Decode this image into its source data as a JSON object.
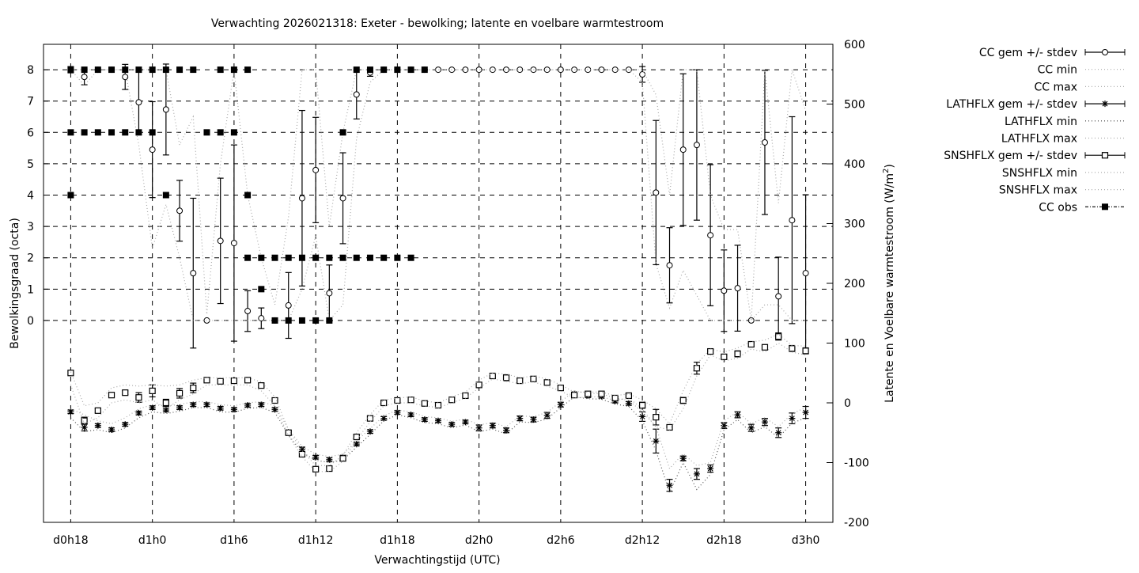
{
  "chart_data": {
    "type": "line",
    "title": "Verwachting 2026021318: Exeter - bewolking; latente en voelbare warmtestroom",
    "xlabel": "Verwachtingstijd (UTC)",
    "ylabel": "Bewolkingsgraad (octa)",
    "y2label": "Latente en Voelbare warmtestroom (W/m",
    "y2label_sup": "2",
    "y2label_end": ")",
    "ylim": [
      -6.44,
      8.81
    ],
    "y2lim": [
      -200,
      600
    ],
    "yticks": [
      0,
      1,
      2,
      3,
      4,
      5,
      6,
      7,
      8
    ],
    "y2ticks": [
      -200,
      -100,
      0,
      100,
      200,
      300,
      400,
      500,
      600
    ],
    "xticks": [
      "d0h18",
      "d1h0",
      "d1h6",
      "d1h12",
      "d1h18",
      "d2h0",
      "d2h6",
      "d2h12",
      "d2h18",
      "d3h0"
    ],
    "grid": true,
    "legend_placement": "outside-right",
    "x": [
      "d0h18",
      "d0h19",
      "d0h20",
      "d0h21",
      "d0h22",
      "d0h23",
      "d1h0",
      "d1h1",
      "d1h2",
      "d1h3",
      "d1h4",
      "d1h5",
      "d1h6",
      "d1h7",
      "d1h8",
      "d1h9",
      "d1h10",
      "d1h11",
      "d1h12",
      "d1h13",
      "d1h14",
      "d1h15",
      "d1h16",
      "d1h17",
      "d1h18",
      "d1h19",
      "d1h20",
      "d1h21",
      "d1h22",
      "d1h23",
      "d2h0",
      "d2h1",
      "d2h2",
      "d2h3",
      "d2h4",
      "d2h5",
      "d2h6",
      "d2h7",
      "d2h8",
      "d2h9",
      "d2h10",
      "d2h11",
      "d2h12",
      "d2h13",
      "d2h14",
      "d2h15",
      "d2h16",
      "d2h17",
      "d2h18",
      "d2h19",
      "d2h20",
      "d2h21",
      "d2h22",
      "d2h23",
      "d3h0"
    ],
    "series": [
      {
        "name": "CC gem +/- stdev",
        "axis": "y",
        "style": "errorbar-circle",
        "values": [
          8,
          7.77,
          8,
          8,
          7.77,
          6.96,
          5.45,
          6.73,
          3.5,
          1.51,
          0,
          2.54,
          2.47,
          0.3,
          0.07,
          0,
          0.48,
          3.9,
          4.8,
          0.87,
          3.9,
          7.21,
          7.91,
          8,
          8,
          8,
          8,
          8,
          8,
          8,
          8,
          8,
          8,
          8,
          8,
          8,
          8,
          8,
          8,
          8,
          8,
          8,
          7.85,
          4.08,
          1.76,
          5.45,
          5.6,
          2.72,
          0.95,
          1.03,
          0,
          5.68,
          0.77,
          3.2,
          1.51
        ],
        "stdev": [
          0.1,
          0.25,
          0,
          0,
          0.4,
          1.0,
          1.53,
          1.45,
          0.97,
          2.39,
          0,
          2.0,
          3.13,
          0.65,
          0.33,
          0,
          1.05,
          2.8,
          1.68,
          0.9,
          1.45,
          0.78,
          0.12,
          0,
          0,
          0,
          0,
          0,
          0,
          0,
          0,
          0,
          0,
          0,
          0,
          0,
          0,
          0,
          0,
          0,
          0,
          0,
          0.25,
          2.3,
          1.2,
          2.42,
          2.4,
          2.25,
          1.3,
          1.37,
          0,
          2.3,
          1.25,
          3.3,
          2.5
        ]
      },
      {
        "name": "CC min",
        "axis": "y",
        "style": "dotted-grey",
        "values": [
          8,
          7.5,
          8,
          8,
          8,
          5.6,
          2.3,
          3.7,
          2.0,
          0,
          0,
          0,
          0,
          0,
          0,
          0,
          0,
          1.0,
          2.7,
          0,
          0.5,
          5.8,
          7.6,
          8,
          8,
          8,
          8,
          8,
          8,
          8,
          8,
          8,
          8,
          8,
          8,
          8,
          8,
          8,
          8,
          8,
          8,
          8,
          7.6,
          1.8,
          0.4,
          1.6,
          0.8,
          0,
          0,
          0,
          0,
          0.5,
          0.5,
          0,
          0
        ]
      },
      {
        "name": "CC max",
        "axis": "y",
        "style": "dotted-grey",
        "values": [
          8,
          8,
          8,
          8,
          8,
          8,
          8,
          8,
          5.6,
          6.5,
          0.2,
          5.0,
          8,
          4.0,
          2.0,
          0.5,
          3.3,
          8,
          8,
          3.0,
          6.0,
          8,
          8,
          8,
          8,
          8,
          8,
          8,
          8,
          8,
          8,
          8,
          8,
          8,
          8,
          8,
          8,
          8,
          8,
          8,
          8,
          8,
          8,
          7.2,
          4.0,
          8,
          8,
          4.0,
          2.9,
          2.9,
          0,
          8,
          3.75,
          8,
          6.7
        ]
      },
      {
        "name": "LATHFLX gem +/- stdev",
        "axis": "y2",
        "style": "errorbar-asterisk",
        "values": [
          -15,
          -41,
          -38,
          -45,
          -36,
          -17,
          -8,
          -12,
          -8,
          -3,
          -3,
          -9,
          -11,
          -4,
          -3,
          -11,
          -49,
          -78,
          -91,
          -95,
          -91,
          -69,
          -48,
          -26,
          -16,
          -20,
          -28,
          -30,
          -36,
          -32,
          -42,
          -38,
          -46,
          -26,
          -28,
          -21,
          -3,
          15,
          12,
          11,
          3,
          -1,
          -23,
          -64,
          -138,
          -93,
          -119,
          -110,
          -38,
          -20,
          -42,
          -32,
          -50,
          -26,
          -16
        ],
        "stdev": [
          3,
          6,
          3,
          3,
          3,
          3,
          3,
          3,
          3,
          3,
          3,
          3,
          3,
          3,
          3,
          3,
          3,
          4,
          3,
          3,
          3,
          3,
          3,
          3,
          3,
          3,
          3,
          3,
          3,
          3,
          5,
          4,
          4,
          4,
          4,
          5,
          4,
          3,
          3,
          3,
          3,
          3,
          8,
          20,
          10,
          4,
          9,
          6,
          5,
          5,
          6,
          6,
          8,
          9,
          10
        ]
      },
      {
        "name": "LATHFLX min",
        "axis": "y2",
        "style": "dotted-black",
        "values": [
          -25,
          -48,
          -45,
          -50,
          -42,
          -25,
          -15,
          -18,
          -14,
          -8,
          -8,
          -15,
          -16,
          -9,
          -8,
          -16,
          -54,
          -83,
          -96,
          -100,
          -96,
          -74,
          -53,
          -30,
          -20,
          -25,
          -33,
          -35,
          -42,
          -37,
          -48,
          -44,
          -52,
          -32,
          -33,
          -27,
          -8,
          10,
          7,
          6,
          -2,
          -6,
          -30,
          -80,
          -150,
          -100,
          -145,
          -120,
          -45,
          -28,
          -50,
          -40,
          -58,
          -34,
          -25
        ]
      },
      {
        "name": "LATHFLX max",
        "axis": "y2",
        "style": "dotted-grey",
        "values": [
          -10,
          -20,
          -30,
          -35,
          -25,
          -10,
          -3,
          -5,
          -3,
          2,
          2,
          -3,
          -5,
          0,
          2,
          -5,
          -44,
          -73,
          -86,
          -90,
          -86,
          -64,
          -43,
          -22,
          -12,
          -15,
          -23,
          -25,
          -31,
          -27,
          -37,
          -33,
          -40,
          -22,
          -23,
          -16,
          2,
          20,
          16,
          15,
          8,
          4,
          -15,
          -40,
          -110,
          -85,
          -105,
          -100,
          -30,
          -15,
          -35,
          -25,
          -40,
          -18,
          -8
        ]
      },
      {
        "name": "SNSHFLX gem +/- stdev",
        "axis": "y2",
        "style": "errorbar-square",
        "values": [
          50,
          -30,
          -13,
          13,
          17,
          9,
          20,
          0,
          16,
          25,
          38,
          36,
          37,
          38,
          29,
          4,
          -50,
          -86,
          -111,
          -110,
          -93,
          -57,
          -26,
          0,
          4,
          5,
          -1,
          -4,
          5,
          12,
          30,
          45,
          42,
          37,
          40,
          34,
          25,
          13,
          15,
          15,
          8,
          12,
          -4,
          -24,
          -41,
          4,
          58,
          86,
          77,
          82,
          98,
          93,
          111,
          91,
          87
        ],
        "stdev": [
          3,
          6,
          3,
          3,
          3,
          8,
          10,
          6,
          8,
          8,
          3,
          3,
          3,
          3,
          3,
          3,
          3,
          3,
          3,
          3,
          3,
          3,
          3,
          3,
          3,
          3,
          3,
          3,
          3,
          3,
          3,
          4,
          5,
          3,
          3,
          3,
          4,
          3,
          3,
          3,
          3,
          3,
          5,
          13,
          4,
          5,
          10,
          4,
          3,
          5,
          3,
          3,
          6,
          5,
          5
        ]
      },
      {
        "name": "SNSHFLX min",
        "axis": "y2",
        "style": "dotted-grey",
        "values": [
          30,
          -35,
          -25,
          0,
          5,
          0,
          5,
          -10,
          5,
          15,
          30,
          30,
          30,
          30,
          20,
          -5,
          -55,
          -90,
          -115,
          -115,
          -98,
          -62,
          -32,
          -5,
          0,
          0,
          -5,
          -8,
          0,
          8,
          25,
          40,
          36,
          32,
          35,
          28,
          20,
          8,
          10,
          10,
          4,
          8,
          -10,
          -40,
          -45,
          -10,
          45,
          80,
          70,
          75,
          90,
          85,
          100,
          85,
          80
        ]
      },
      {
        "name": "SNSHFLX max",
        "axis": "y2",
        "style": "dotted-grey",
        "values": [
          52,
          -5,
          0,
          25,
          30,
          28,
          30,
          28,
          30,
          38,
          42,
          42,
          42,
          42,
          35,
          10,
          -45,
          -80,
          -105,
          -105,
          -88,
          -50,
          -20,
          5,
          8,
          10,
          3,
          0,
          10,
          18,
          38,
          50,
          48,
          42,
          45,
          40,
          30,
          18,
          18,
          18,
          12,
          15,
          5,
          -10,
          -35,
          20,
          65,
          90,
          85,
          92,
          102,
          105,
          115,
          96,
          95
        ]
      },
      {
        "name": "CC obs",
        "axis": "y",
        "style": "filled-square",
        "values": [
          [
            8,
            6,
            4
          ],
          [
            8,
            6
          ],
          [
            8,
            6
          ],
          [
            8,
            6
          ],
          [
            8,
            6
          ],
          [
            8,
            6
          ],
          [
            8,
            6
          ],
          [
            8,
            4
          ],
          [
            8
          ],
          [
            8
          ],
          [
            6
          ],
          [
            8,
            6
          ],
          [
            8,
            6
          ],
          [
            8,
            4,
            2
          ],
          [
            2,
            1
          ],
          [
            2,
            0
          ],
          [
            2,
            0
          ],
          [
            2,
            0
          ],
          [
            2,
            0
          ],
          [
            2,
            0
          ],
          [
            6,
            2
          ],
          [
            8,
            2
          ],
          [
            8,
            2
          ],
          [
            8,
            2
          ],
          [
            8,
            2
          ],
          [
            8,
            2
          ],
          [
            8
          ],
          [],
          [],
          [],
          [],
          [],
          [],
          [],
          [],
          [],
          [],
          [],
          [],
          [],
          [],
          [],
          [],
          [],
          [],
          [],
          [],
          [],
          [],
          [],
          [],
          [],
          [],
          [],
          []
        ]
      }
    ]
  }
}
